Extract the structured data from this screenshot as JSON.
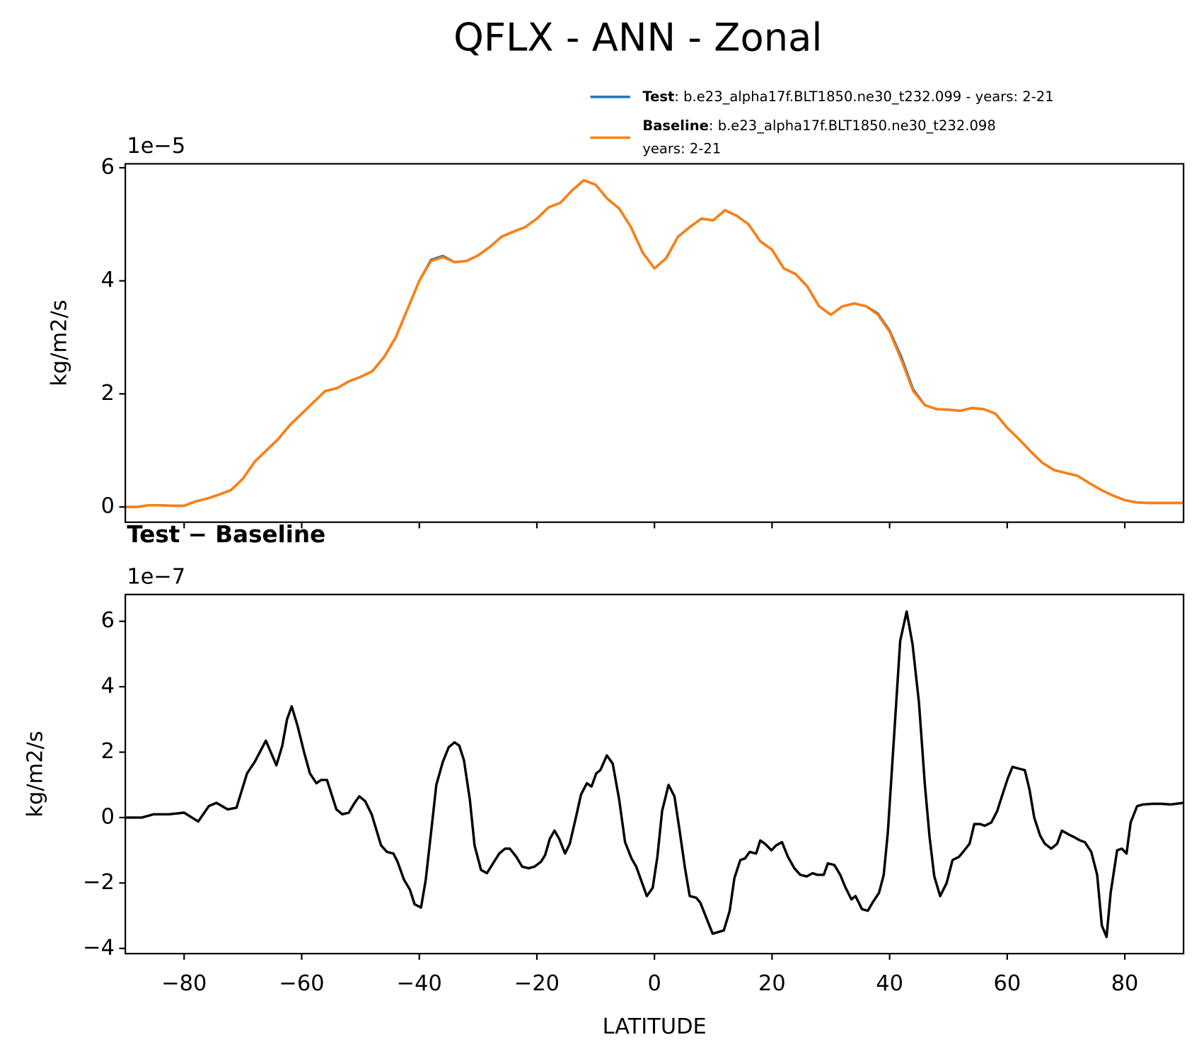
{
  "title": "QFLX - ANN - Zonal",
  "chart_data": [
    {
      "type": "line",
      "ylabel": "kg/m2/s",
      "offset_label": "1e−5",
      "show_xtick_labels": false,
      "xlim": [
        -90,
        90
      ],
      "ylim": [
        -0.27,
        6.07
      ],
      "xticks": [
        -80,
        -60,
        -40,
        -20,
        0,
        20,
        40,
        60,
        80
      ],
      "yticks": [
        0,
        2,
        4,
        6
      ],
      "x": [
        -90,
        -88,
        -86,
        -84,
        -82,
        -80,
        -78,
        -76,
        -74,
        -72,
        -70,
        -68,
        -66,
        -64,
        -62,
        -60,
        -58,
        -56,
        -54,
        -52,
        -50,
        -48,
        -46,
        -44,
        -42,
        -40,
        -38,
        -36,
        -34,
        -32,
        -30,
        -28,
        -26,
        -24,
        -22,
        -20,
        -18,
        -16,
        -14,
        -12,
        -10,
        -8,
        -6,
        -4,
        -2,
        0,
        2,
        4,
        6,
        8,
        10,
        12,
        14,
        16,
        18,
        20,
        22,
        24,
        26,
        28,
        30,
        32,
        34,
        36,
        38,
        40,
        42,
        44,
        46,
        48,
        50,
        52,
        54,
        56,
        58,
        60,
        62,
        64,
        66,
        68,
        70,
        72,
        74,
        76,
        78,
        80,
        82,
        84,
        86,
        88,
        90
      ],
      "series": [
        {
          "name": "Test",
          "label_lines": [
            ": b.e23_alpha17f.BLT1850.ne30_t232.099 - years: 2-21"
          ],
          "color": "#1f77b4",
          "values": [
            0.0,
            0.0,
            0.03,
            0.03,
            0.02,
            0.02,
            0.1,
            0.15,
            0.22,
            0.3,
            0.5,
            0.8,
            1.0,
            1.2,
            1.45,
            1.65,
            1.85,
            2.05,
            2.1,
            2.22,
            2.3,
            2.4,
            2.65,
            3.0,
            3.5,
            4.0,
            4.37,
            4.44,
            4.33,
            4.35,
            4.45,
            4.6,
            4.78,
            4.87,
            4.95,
            5.1,
            5.3,
            5.38,
            5.6,
            5.78,
            5.7,
            5.45,
            5.28,
            4.95,
            4.5,
            4.22,
            4.4,
            4.78,
            4.95,
            5.1,
            5.07,
            5.25,
            5.15,
            5.0,
            4.7,
            4.55,
            4.22,
            4.12,
            3.9,
            3.55,
            3.4,
            3.55,
            3.6,
            3.55,
            3.42,
            3.12,
            2.65,
            2.08,
            1.8,
            1.73,
            1.72,
            1.7,
            1.75,
            1.73,
            1.65,
            1.4,
            1.2,
            0.98,
            0.78,
            0.65,
            0.6,
            0.55,
            0.42,
            0.3,
            0.2,
            0.12,
            0.08,
            0.07,
            0.07,
            0.07,
            0.07
          ]
        },
        {
          "name": "Baseline",
          "label_lines": [
            ": b.e23_alpha17f.BLT1850.ne30_t232.098",
            "years: 2-21"
          ],
          "color": "#ff7f0e",
          "values": [
            0.0,
            0.0,
            0.03,
            0.03,
            0.02,
            0.02,
            0.1,
            0.15,
            0.22,
            0.3,
            0.5,
            0.8,
            1.0,
            1.2,
            1.45,
            1.65,
            1.85,
            2.05,
            2.1,
            2.22,
            2.3,
            2.4,
            2.65,
            3.0,
            3.5,
            4.0,
            4.35,
            4.42,
            4.33,
            4.35,
            4.45,
            4.6,
            4.78,
            4.87,
            4.95,
            5.1,
            5.3,
            5.38,
            5.6,
            5.78,
            5.7,
            5.45,
            5.28,
            4.95,
            4.5,
            4.22,
            4.4,
            4.78,
            4.95,
            5.1,
            5.07,
            5.25,
            5.15,
            5.0,
            4.7,
            4.55,
            4.22,
            4.12,
            3.9,
            3.55,
            3.4,
            3.55,
            3.6,
            3.55,
            3.4,
            3.1,
            2.6,
            2.05,
            1.8,
            1.73,
            1.72,
            1.7,
            1.75,
            1.73,
            1.65,
            1.4,
            1.2,
            0.98,
            0.78,
            0.65,
            0.6,
            0.55,
            0.42,
            0.3,
            0.2,
            0.12,
            0.08,
            0.07,
            0.07,
            0.07,
            0.07
          ]
        }
      ]
    },
    {
      "type": "line",
      "title": "Test − Baseline",
      "ylabel": "kg/m2/s",
      "xlabel": "LATITUDE",
      "offset_label": "1e−7",
      "show_xtick_labels": true,
      "color": "#000000",
      "xlim": [
        -90,
        90
      ],
      "ylim": [
        -4.16,
        6.82
      ],
      "xticks": [
        {
          "value": -80,
          "label": "−80"
        },
        {
          "value": -60,
          "label": "−60"
        },
        {
          "value": -40,
          "label": "−40"
        },
        {
          "value": -20,
          "label": "−20"
        },
        0,
        20,
        40,
        60,
        80
      ],
      "yticks": [
        {
          "value": -4,
          "label": "−4"
        },
        {
          "value": -2,
          "label": "−2"
        },
        0,
        2,
        4,
        6
      ],
      "x": [
        -90,
        -87.2,
        -85.2,
        -82.6,
        -80,
        -77.6,
        -75.8,
        -74.5,
        -72.6,
        -71.1,
        -69.3,
        -68,
        -66.1,
        -64.3,
        -63.3,
        -62.5,
        -61.7,
        -60.7,
        -59.6,
        -58.6,
        -57.5,
        -56.7,
        -55.7,
        -54.1,
        -53.1,
        -52,
        -51,
        -50.2,
        -49.2,
        -48.1,
        -46.5,
        -45.5,
        -44.4,
        -43.7,
        -42.6,
        -41.6,
        -40.8,
        -39.7,
        -38.9,
        -37.9,
        -37.1,
        -36,
        -35,
        -34,
        -33.2,
        -32.4,
        -31.4,
        -30.6,
        -29.5,
        -28.5,
        -26.4,
        -25.4,
        -24.6,
        -23.5,
        -22.5,
        -21.4,
        -20.4,
        -19.3,
        -18.6,
        -17.8,
        -17,
        -16.2,
        -15.2,
        -14.4,
        -13.3,
        -12.5,
        -11.5,
        -10.7,
        -9.9,
        -9.2,
        -8.1,
        -7.1,
        -6,
        -5,
        -3.9,
        -3.1,
        -2.1,
        -1.3,
        -0.3,
        0.5,
        1.3,
        2.4,
        3.4,
        4.2,
        5.2,
        6,
        7.1,
        7.8,
        8.9,
        9.9,
        11.8,
        12.8,
        13.6,
        14.6,
        15.4,
        16.2,
        17.3,
        18,
        18.8,
        19.9,
        20.7,
        21.7,
        22.7,
        23.8,
        24.8,
        25.9,
        26.9,
        27.7,
        28.8,
        29.5,
        30.6,
        31.6,
        32.4,
        33.5,
        34.2,
        35.3,
        36.3,
        37.1,
        38.2,
        39,
        39.7,
        40.8,
        41.8,
        42.9,
        43.9,
        45,
        46,
        46.8,
        47.6,
        48.6,
        49.7,
        50.7,
        51.8,
        52.5,
        53.6,
        54.4,
        55.4,
        56.2,
        57.3,
        58.3,
        59.1,
        60.1,
        60.9,
        61.9,
        63,
        63.8,
        64.6,
        65.6,
        66.4,
        67.5,
        68.5,
        69.3,
        70.3,
        71.4,
        72.4,
        73.2,
        74.3,
        75.3,
        76.1,
        76.9,
        77.6,
        78.7,
        79.5,
        80.3,
        81,
        82.1,
        83.1,
        84.7,
        86.3,
        87.8,
        90
      ],
      "values": [
        0.0,
        0.0,
        0.1,
        0.1,
        0.15,
        -0.12,
        0.35,
        0.45,
        0.25,
        0.3,
        1.35,
        1.7,
        2.35,
        1.6,
        2.2,
        3.0,
        3.4,
        2.8,
        2.0,
        1.35,
        1.05,
        1.15,
        1.15,
        0.25,
        0.1,
        0.15,
        0.45,
        0.65,
        0.5,
        0.1,
        -0.85,
        -1.05,
        -1.1,
        -1.35,
        -1.9,
        -2.2,
        -2.65,
        -2.75,
        -1.9,
        -0.3,
        1.0,
        1.7,
        2.15,
        2.3,
        2.2,
        1.75,
        0.55,
        -0.85,
        -1.6,
        -1.7,
        -1.1,
        -0.95,
        -0.95,
        -1.2,
        -1.5,
        -1.55,
        -1.5,
        -1.35,
        -1.15,
        -0.65,
        -0.4,
        -0.65,
        -1.1,
        -0.8,
        0.05,
        0.7,
        1.05,
        0.95,
        1.35,
        1.45,
        1.9,
        1.65,
        0.55,
        -0.75,
        -1.25,
        -1.5,
        -2.0,
        -2.4,
        -2.15,
        -1.2,
        0.2,
        1.0,
        0.65,
        -0.3,
        -1.55,
        -2.4,
        -2.45,
        -2.6,
        -3.1,
        -3.55,
        -3.45,
        -2.85,
        -1.85,
        -1.3,
        -1.25,
        -1.05,
        -1.1,
        -0.7,
        -0.8,
        -1.0,
        -0.85,
        -0.75,
        -1.2,
        -1.55,
        -1.75,
        -1.8,
        -1.7,
        -1.75,
        -1.75,
        -1.4,
        -1.45,
        -1.75,
        -2.1,
        -2.5,
        -2.4,
        -2.8,
        -2.85,
        -2.6,
        -2.3,
        -1.75,
        -0.45,
        2.6,
        5.4,
        6.3,
        5.3,
        3.5,
        1.0,
        -0.6,
        -1.8,
        -2.4,
        -2.0,
        -1.3,
        -1.2,
        -1.05,
        -0.8,
        -0.2,
        -0.2,
        -0.25,
        -0.15,
        0.2,
        0.65,
        1.2,
        1.55,
        1.5,
        1.45,
        0.85,
        0.0,
        -0.55,
        -0.8,
        -0.95,
        -0.8,
        -0.4,
        -0.5,
        -0.6,
        -0.7,
        -0.75,
        -1.05,
        -1.75,
        -3.3,
        -3.65,
        -2.3,
        -1.0,
        -0.95,
        -1.1,
        -0.15,
        0.35,
        0.4,
        0.42,
        0.42,
        0.4,
        0.45
      ]
    }
  ]
}
